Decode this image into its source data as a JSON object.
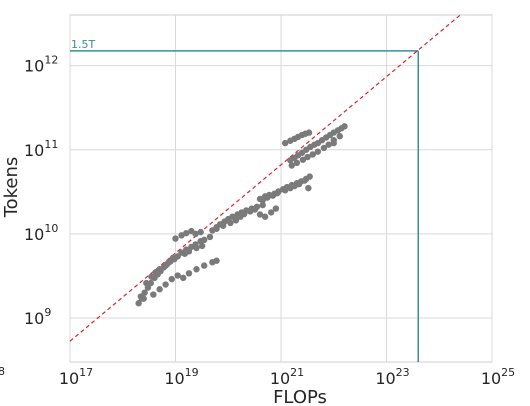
{
  "chart_data": {
    "type": "scatter",
    "xscale": "log",
    "yscale": "log",
    "xlabel": "FLOPs",
    "ylabel": "Tokens",
    "xlim": [
      1e+17,
      1e+25
    ],
    "ylim": [
      300000000.0,
      4000000000000.0
    ],
    "grid": true,
    "x_ticks": [
      {
        "base": "10",
        "exp": "17"
      },
      {
        "base": "10",
        "exp": "19"
      },
      {
        "base": "10",
        "exp": "21"
      },
      {
        "base": "10",
        "exp": "23"
      },
      {
        "base": "10",
        "exp": "25"
      }
    ],
    "y_ticks": [
      {
        "base": "10",
        "exp": "9"
      },
      {
        "base": "10",
        "exp": "10"
      },
      {
        "base": "10",
        "exp": "11"
      },
      {
        "base": "10",
        "exp": "12"
      }
    ],
    "partial_tick": "8",
    "fit_line": {
      "x": [
        1e+17,
        2.5e+24
      ],
      "y": [
        530000000.0,
        4000000000000.0
      ],
      "color": "#d62728",
      "style": "dashed"
    },
    "annotation": {
      "label": "1.5T",
      "x": 4e+23,
      "y": 1500000000000.0,
      "color": "#3a8f95"
    },
    "point_color": "#7a7a7a",
    "points": [
      [
        2e+18,
        1500000000.0
      ],
      [
        2.3e+18,
        1700000000.0
      ],
      [
        2.6e+18,
        2000000000.0
      ],
      [
        3e+18,
        2300000000.0
      ],
      [
        3.4e+18,
        2600000000.0
      ],
      [
        4e+18,
        3000000000.0
      ],
      [
        4.6e+18,
        3300000000.0
      ],
      [
        5.2e+18,
        3600000000.0
      ],
      [
        6e+18,
        4000000000.0
      ],
      [
        7e+18,
        4400000000.0
      ],
      [
        8e+18,
        4700000000.0
      ],
      [
        9.5e+18,
        5000000000.0
      ],
      [
        1.1e+19,
        5400000000.0
      ],
      [
        1.3e+19,
        6000000000.0
      ],
      [
        1.6e+19,
        6500000000.0
      ],
      [
        2e+19,
        7000000000.0
      ],
      [
        2.4e+19,
        7500000000.0
      ],
      [
        3e+19,
        8200000000.0
      ],
      [
        3.5e+19,
        8500000000.0
      ],
      [
        4.5e+19,
        9200000000.0
      ],
      [
        2.2e+18,
        1800000000.0
      ],
      [
        2.8e+18,
        2600000000.0
      ],
      [
        3.5e+18,
        3100000000.0
      ],
      [
        4.2e+18,
        3500000000.0
      ],
      [
        5e+18,
        3800000000.0
      ],
      [
        6.5e+18,
        4200000000.0
      ],
      [
        7.5e+18,
        4600000000.0
      ],
      [
        9e+18,
        5200000000.0
      ],
      [
        1.5e+19,
        5800000000.0
      ],
      [
        1.8e+19,
        6200000000.0
      ],
      [
        2.5e+19,
        6800000000.0
      ],
      [
        3.2e+19,
        7200000000.0
      ],
      [
        3.8e+18,
        1900000000.0
      ],
      [
        5e+18,
        2200000000.0
      ],
      [
        6.5e+18,
        2500000000.0
      ],
      [
        8.5e+18,
        2900000000.0
      ],
      [
        1.1e+19,
        3200000000.0
      ],
      [
        1.4e+19,
        3000000000.0
      ],
      [
        1.8e+19,
        3400000000.0
      ],
      [
        2.5e+19,
        3800000000.0
      ],
      [
        3.5e+19,
        4200000000.0
      ],
      [
        5e+19,
        4600000000.0
      ],
      [
        6e+19,
        4800000000.0
      ],
      [
        2.5e+18,
        1700000000.0
      ],
      [
        1e+19,
        8800000000.0
      ],
      [
        1.3e+19,
        9600000000.0
      ],
      [
        1.6e+19,
        10200000000.0
      ],
      [
        2e+19,
        10800000000.0
      ],
      [
        2.4e+19,
        10000000000.0
      ],
      [
        3e+19,
        10500000000.0
      ],
      [
        5e+19,
        11000000000.0
      ],
      [
        6e+19,
        12000000000.0
      ],
      [
        7e+19,
        13000000000.0
      ],
      [
        8.5e+19,
        14000000000.0
      ],
      [
        1e+20,
        15000000000.0
      ],
      [
        1.2e+20,
        16000000000.0
      ],
      [
        1.5e+20,
        17000000000.0
      ],
      [
        1.8e+20,
        18000000000.0
      ],
      [
        2.2e+20,
        19000000000.0
      ],
      [
        2.8e+20,
        20000000000.0
      ],
      [
        3.5e+20,
        21000000000.0
      ],
      [
        4.5e+20,
        22000000000.0
      ],
      [
        6e+19,
        11500000000.0
      ],
      [
        8e+19,
        12500000000.0
      ],
      [
        1.1e+20,
        13500000000.0
      ],
      [
        1.4e+20,
        14500000000.0
      ],
      [
        1.7e+20,
        16000000000.0
      ],
      [
        2e+20,
        17200000000.0
      ],
      [
        2.6e+20,
        18500000000.0
      ],
      [
        3.2e+20,
        19500000000.0
      ],
      [
        4e+20,
        17000000000.0
      ],
      [
        5e+20,
        16000000000.0
      ],
      [
        6.5e+20,
        18000000000.0
      ],
      [
        8e+20,
        20000000000.0
      ],
      [
        4e+20,
        26000000000.0
      ],
      [
        5e+20,
        28000000000.0
      ],
      [
        6e+20,
        29000000000.0
      ],
      [
        7.5e+20,
        30000000000.0
      ],
      [
        9e+20,
        32000000000.0
      ],
      [
        1.1e+21,
        34000000000.0
      ],
      [
        1.3e+21,
        36000000000.0
      ],
      [
        1.6e+21,
        38000000000.0
      ],
      [
        2e+21,
        40000000000.0
      ],
      [
        2.4e+21,
        42000000000.0
      ],
      [
        3e+21,
        45000000000.0
      ],
      [
        3.5e+21,
        48000000000.0
      ],
      [
        4.5e+20,
        25000000000.0
      ],
      [
        5.5e+20,
        27000000000.0
      ],
      [
        7e+20,
        28500000000.0
      ],
      [
        8.5e+20,
        30500000000.0
      ],
      [
        1.2e+21,
        33000000000.0
      ],
      [
        1.5e+21,
        35000000000.0
      ],
      [
        1.8e+21,
        37000000000.0
      ],
      [
        2.2e+21,
        39000000000.0
      ],
      [
        2.8e+21,
        43000000000.0
      ],
      [
        3.3e+21,
        35000000000.0
      ],
      [
        1.5e+21,
        75000000000.0
      ],
      [
        1.8e+21,
        80000000000.0
      ],
      [
        2.1e+21,
        86000000000.0
      ],
      [
        2.5e+21,
        92000000000.0
      ],
      [
        3e+21,
        100000000000.0
      ],
      [
        3.6e+21,
        108000000000.0
      ],
      [
        4.3e+21,
        115000000000.0
      ],
      [
        5e+21,
        120000000000.0
      ],
      [
        6e+21,
        130000000000.0
      ],
      [
        7.2e+21,
        140000000000.0
      ],
      [
        8.5e+21,
        150000000000.0
      ],
      [
        1e+22,
        160000000000.0
      ],
      [
        1.2e+22,
        170000000000.0
      ],
      [
        1.4e+22,
        180000000000.0
      ],
      [
        1.6e+22,
        190000000000.0
      ],
      [
        1.2e+21,
        120000000000.0
      ],
      [
        1.5e+21,
        128000000000.0
      ],
      [
        1.8e+21,
        135000000000.0
      ],
      [
        2.1e+21,
        142000000000.0
      ],
      [
        2.5e+21,
        150000000000.0
      ],
      [
        2.9e+21,
        155000000000.0
      ],
      [
        3.4e+21,
        160000000000.0
      ],
      [
        1.6e+21,
        65000000000.0
      ],
      [
        2e+21,
        70000000000.0
      ],
      [
        2.6e+21,
        76000000000.0
      ],
      [
        3.2e+21,
        82000000000.0
      ],
      [
        4e+21,
        88000000000.0
      ],
      [
        5e+21,
        95000000000.0
      ],
      [
        6.5e+21,
        105000000000.0
      ],
      [
        8e+21,
        115000000000.0
      ],
      [
        1e+22,
        130000000000.0
      ],
      [
        1.3e+22,
        145000000000.0
      ],
      [
        1e+22,
        120000000000.0
      ]
    ]
  }
}
